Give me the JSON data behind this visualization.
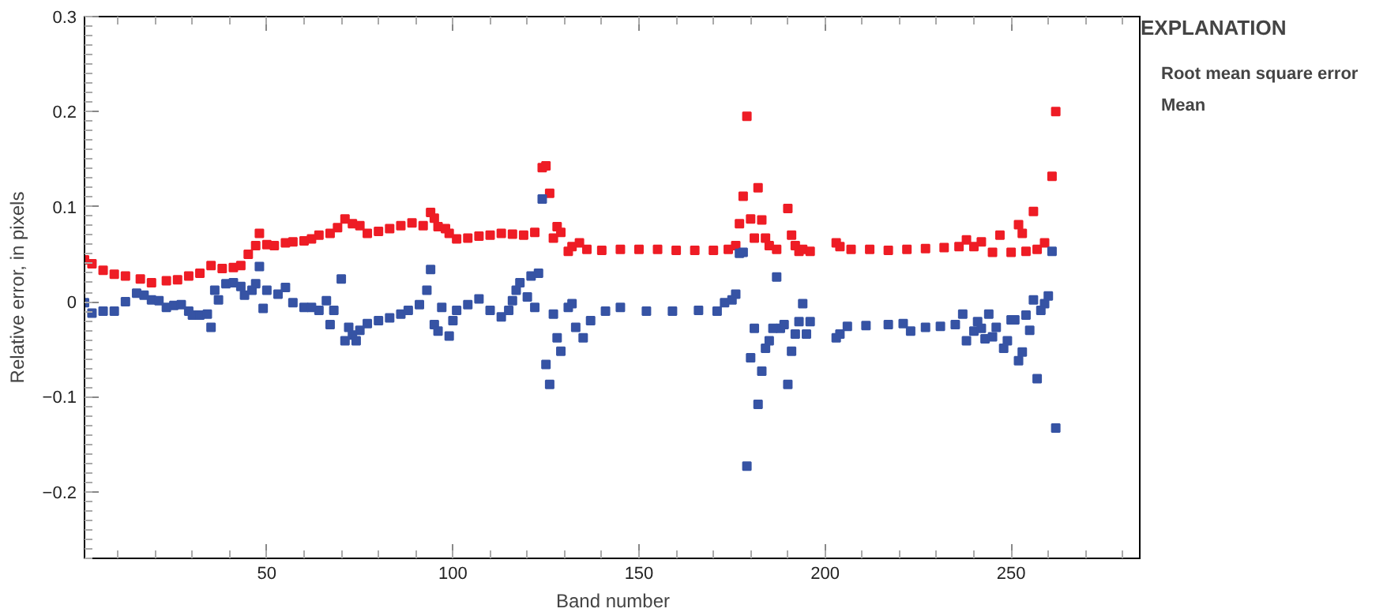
{
  "chart_data": {
    "type": "scatter",
    "xlabel": "Band number",
    "ylabel": "Relative error, in pixels",
    "legend_title": "EXPLANATION",
    "xlim": [
      1,
      285
    ],
    "xticks": [
      50,
      100,
      150,
      200,
      250
    ],
    "ylim": [
      -0.27,
      0.3
    ],
    "yticks": [
      {
        "value": -0.2,
        "label": "−0.2"
      },
      {
        "value": -0.1,
        "label": "−0.1"
      },
      0,
      0.1,
      0.2,
      0.3
    ],
    "grid": false,
    "legend": "right",
    "marker": "square",
    "series": [
      {
        "name": "Root mean square error",
        "color": "#ee1c25",
        "x": [
          1,
          3,
          6,
          9,
          12,
          16,
          19,
          23,
          26,
          29,
          32,
          35,
          38,
          41,
          43,
          45,
          47,
          48,
          50,
          52,
          55,
          57,
          60,
          62,
          64,
          67,
          69,
          71,
          73,
          75,
          77,
          80,
          83,
          86,
          89,
          92,
          94,
          95,
          96,
          98,
          99,
          101,
          104,
          107,
          110,
          113,
          116,
          119,
          122,
          124,
          125,
          126,
          127,
          128,
          129,
          131,
          132,
          134,
          136,
          140,
          145,
          150,
          155,
          160,
          165,
          170,
          174,
          176,
          177,
          178,
          179,
          180,
          181,
          182,
          183,
          184,
          185,
          187,
          190,
          191,
          192,
          193,
          194,
          196,
          203,
          204,
          207,
          212,
          217,
          222,
          227,
          232,
          236,
          238,
          240,
          242,
          245,
          247,
          250,
          252,
          253,
          254,
          256,
          257,
          259,
          261,
          262
        ],
        "values": [
          0.044,
          0.04,
          0.033,
          0.029,
          0.027,
          0.024,
          0.02,
          0.022,
          0.023,
          0.027,
          0.03,
          0.038,
          0.035,
          0.036,
          0.038,
          0.05,
          0.059,
          0.072,
          0.06,
          0.059,
          0.062,
          0.063,
          0.064,
          0.066,
          0.07,
          0.072,
          0.078,
          0.087,
          0.082,
          0.08,
          0.072,
          0.074,
          0.077,
          0.08,
          0.083,
          0.08,
          0.094,
          0.088,
          0.079,
          0.077,
          0.072,
          0.066,
          0.067,
          0.069,
          0.07,
          0.072,
          0.071,
          0.07,
          0.073,
          0.141,
          0.143,
          0.114,
          0.067,
          0.079,
          0.073,
          0.053,
          0.058,
          0.062,
          0.055,
          0.054,
          0.055,
          0.055,
          0.055,
          0.054,
          0.054,
          0.054,
          0.055,
          0.059,
          0.082,
          0.111,
          0.195,
          0.087,
          0.067,
          0.12,
          0.086,
          0.067,
          0.059,
          0.055,
          0.098,
          0.07,
          0.059,
          0.053,
          0.055,
          0.053,
          0.062,
          0.058,
          0.055,
          0.055,
          0.054,
          0.055,
          0.056,
          0.057,
          0.058,
          0.065,
          0.058,
          0.063,
          0.052,
          0.07,
          0.052,
          0.081,
          0.072,
          0.053,
          0.095,
          0.055,
          0.062,
          0.132,
          0.2
        ]
      },
      {
        "name": "Mean",
        "color": "#3653a4",
        "x": [
          1,
          3,
          6,
          9,
          12,
          15,
          17,
          19,
          21,
          23,
          25,
          27,
          29,
          30,
          32,
          34,
          35,
          36,
          37,
          39,
          41,
          43,
          44,
          46,
          47,
          48,
          49,
          50,
          53,
          55,
          57,
          60,
          62,
          64,
          66,
          67,
          68,
          70,
          71,
          72,
          73,
          74,
          75,
          77,
          80,
          83,
          86,
          88,
          91,
          93,
          94,
          95,
          96,
          97,
          99,
          100,
          101,
          104,
          107,
          110,
          113,
          115,
          116,
          117,
          118,
          120,
          121,
          122,
          123,
          124,
          125,
          126,
          127,
          128,
          129,
          131,
          132,
          133,
          135,
          137,
          141,
          145,
          152,
          159,
          166,
          171,
          173,
          175,
          176,
          177,
          178,
          179,
          180,
          181,
          182,
          183,
          184,
          185,
          186,
          187,
          188,
          189,
          190,
          191,
          192,
          193,
          194,
          195,
          196,
          203,
          204,
          206,
          211,
          217,
          221,
          223,
          227,
          231,
          235,
          237,
          238,
          240,
          241,
          242,
          243,
          244,
          245,
          246,
          248,
          249,
          250,
          251,
          252,
          253,
          254,
          255,
          256,
          257,
          258,
          259,
          260,
          261,
          262
        ],
        "values": [
          -0.001,
          -0.012,
          -0.01,
          -0.01,
          0.0,
          0.009,
          0.007,
          0.002,
          0.001,
          -0.006,
          -0.004,
          -0.003,
          -0.01,
          -0.014,
          -0.014,
          -0.013,
          -0.027,
          0.012,
          0.002,
          0.019,
          0.02,
          0.016,
          0.007,
          0.012,
          0.019,
          0.037,
          -0.007,
          0.012,
          0.008,
          0.015,
          -0.001,
          -0.006,
          -0.006,
          -0.009,
          0.001,
          -0.024,
          -0.009,
          0.024,
          -0.041,
          -0.027,
          -0.035,
          -0.041,
          -0.03,
          -0.023,
          -0.02,
          -0.017,
          -0.013,
          -0.009,
          -0.003,
          0.012,
          0.034,
          -0.024,
          -0.031,
          -0.006,
          -0.036,
          -0.02,
          -0.009,
          -0.003,
          0.003,
          -0.009,
          -0.016,
          -0.009,
          0.001,
          0.012,
          0.02,
          0.005,
          0.027,
          -0.006,
          0.03,
          0.108,
          -0.066,
          -0.087,
          -0.013,
          -0.038,
          -0.052,
          -0.006,
          -0.002,
          -0.027,
          -0.038,
          -0.02,
          -0.01,
          -0.006,
          -0.01,
          -0.01,
          -0.009,
          -0.01,
          -0.001,
          0.002,
          0.008,
          0.051,
          0.052,
          -0.173,
          -0.059,
          -0.028,
          -0.108,
          -0.073,
          -0.049,
          -0.041,
          -0.028,
          0.026,
          -0.028,
          -0.024,
          -0.087,
          -0.052,
          -0.034,
          -0.021,
          -0.002,
          -0.034,
          -0.021,
          -0.038,
          -0.034,
          -0.026,
          -0.025,
          -0.024,
          -0.023,
          -0.031,
          -0.027,
          -0.026,
          -0.024,
          -0.013,
          -0.041,
          -0.031,
          -0.021,
          -0.028,
          -0.039,
          -0.013,
          -0.037,
          -0.027,
          -0.049,
          -0.041,
          -0.019,
          -0.019,
          -0.062,
          -0.053,
          -0.014,
          -0.03,
          0.002,
          -0.081,
          -0.009,
          -0.002,
          0.006,
          0.053,
          -0.133
        ]
      }
    ]
  }
}
